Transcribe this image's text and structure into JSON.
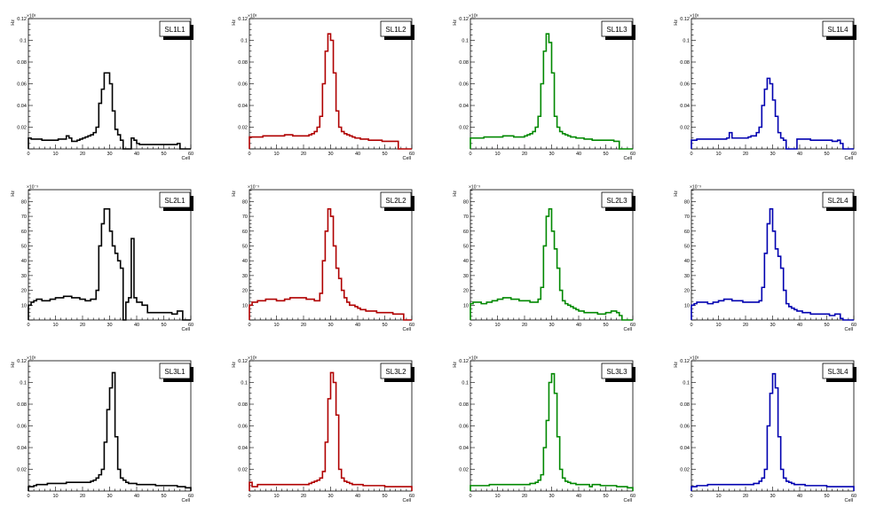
{
  "colors": {
    "black": "#000000",
    "red": "#b00000",
    "green": "#008800",
    "blue": "#0000b0"
  },
  "chart_data": [
    {
      "type": "histogram-step",
      "title": "SL1L1",
      "xlabel": "Cell",
      "ylabel": "Hz",
      "exponent_label": "×10³",
      "xlim": [
        0,
        60
      ],
      "ylim": [
        0,
        0.12
      ],
      "xticks": [
        0,
        10,
        20,
        30,
        40,
        50,
        60
      ],
      "yticks": [
        0.02,
        0.04,
        0.06,
        0.08,
        0.1,
        0.12
      ],
      "ytick_labels": [
        "0.02",
        "0.04",
        "0.06",
        "0.08",
        "0.1",
        "0.12"
      ],
      "color": "black",
      "values": [
        0.01,
        0.009,
        0.009,
        0.009,
        0.009,
        0.008,
        0.008,
        0.008,
        0.008,
        0.008,
        0.008,
        0.009,
        0.009,
        0.009,
        0.012,
        0.01,
        0.007,
        0.007,
        0.008,
        0.009,
        0.01,
        0.011,
        0.012,
        0.013,
        0.015,
        0.02,
        0.042,
        0.055,
        0.07,
        0.07,
        0.06,
        0.035,
        0.018,
        0.013,
        0.008,
        0.0,
        0.0,
        0.0,
        0.01,
        0.008,
        0.005,
        0.004,
        0.004,
        0.004,
        0.004,
        0.004,
        0.004,
        0.004,
        0.004,
        0.004,
        0.004,
        0.004,
        0.004,
        0.004,
        0.004,
        0.005,
        0.0,
        0.0,
        0.0,
        0.0
      ]
    },
    {
      "type": "histogram-step",
      "title": "SL1L2",
      "xlabel": "Cell",
      "ylabel": "Hz",
      "exponent_label": "×10³",
      "xlim": [
        0,
        60
      ],
      "ylim": [
        0,
        0.12
      ],
      "xticks": [
        0,
        10,
        20,
        30,
        40,
        50,
        60
      ],
      "yticks": [
        0.02,
        0.04,
        0.06,
        0.08,
        0.1,
        0.12
      ],
      "ytick_labels": [
        "0.02",
        "0.04",
        "0.06",
        "0.08",
        "0.1",
        "0.12"
      ],
      "color": "red",
      "values": [
        0.011,
        0.011,
        0.011,
        0.011,
        0.011,
        0.012,
        0.012,
        0.012,
        0.012,
        0.012,
        0.012,
        0.012,
        0.012,
        0.013,
        0.013,
        0.013,
        0.012,
        0.012,
        0.012,
        0.012,
        0.012,
        0.012,
        0.013,
        0.014,
        0.016,
        0.02,
        0.03,
        0.06,
        0.09,
        0.106,
        0.1,
        0.07,
        0.035,
        0.02,
        0.016,
        0.014,
        0.013,
        0.012,
        0.011,
        0.01,
        0.01,
        0.009,
        0.009,
        0.009,
        0.008,
        0.008,
        0.008,
        0.008,
        0.008,
        0.007,
        0.007,
        0.007,
        0.007,
        0.007,
        0.007,
        0.0,
        0.0,
        0.0,
        0.0,
        0.0
      ]
    },
    {
      "type": "histogram-step",
      "title": "SL1L3",
      "xlabel": "Cell",
      "ylabel": "Hz",
      "exponent_label": "×10³",
      "xlim": [
        0,
        60
      ],
      "ylim": [
        0,
        0.12
      ],
      "xticks": [
        0,
        10,
        20,
        30,
        40,
        50,
        60
      ],
      "yticks": [
        0.02,
        0.04,
        0.06,
        0.08,
        0.1,
        0.12
      ],
      "ytick_labels": [
        "0.02",
        "0.04",
        "0.06",
        "0.08",
        "0.1",
        "0.12"
      ],
      "color": "green",
      "values": [
        0.01,
        0.01,
        0.01,
        0.01,
        0.01,
        0.011,
        0.011,
        0.011,
        0.011,
        0.011,
        0.011,
        0.011,
        0.012,
        0.012,
        0.012,
        0.012,
        0.011,
        0.011,
        0.011,
        0.011,
        0.012,
        0.013,
        0.014,
        0.016,
        0.02,
        0.03,
        0.06,
        0.09,
        0.106,
        0.098,
        0.07,
        0.03,
        0.02,
        0.016,
        0.014,
        0.013,
        0.012,
        0.011,
        0.011,
        0.01,
        0.01,
        0.01,
        0.009,
        0.009,
        0.009,
        0.008,
        0.008,
        0.008,
        0.008,
        0.008,
        0.008,
        0.008,
        0.008,
        0.007,
        0.007,
        0.0,
        0.0,
        0.0,
        0.0,
        0.0
      ]
    },
    {
      "type": "histogram-step",
      "title": "SL1L4",
      "xlabel": "Cell",
      "ylabel": "Hz",
      "exponent_label": "×10³",
      "xlim": [
        0,
        60
      ],
      "ylim": [
        0,
        0.12
      ],
      "xticks": [
        0,
        10,
        20,
        30,
        40,
        50,
        60
      ],
      "yticks": [
        0.02,
        0.04,
        0.06,
        0.08,
        0.1,
        0.12
      ],
      "ytick_labels": [
        "0.02",
        "0.04",
        "0.06",
        "0.08",
        "0.1",
        "0.12"
      ],
      "color": "blue",
      "values": [
        0.008,
        0.008,
        0.009,
        0.009,
        0.009,
        0.009,
        0.009,
        0.009,
        0.009,
        0.009,
        0.009,
        0.009,
        0.009,
        0.01,
        0.015,
        0.01,
        0.01,
        0.01,
        0.01,
        0.01,
        0.01,
        0.011,
        0.012,
        0.012,
        0.015,
        0.02,
        0.04,
        0.055,
        0.065,
        0.06,
        0.045,
        0.03,
        0.015,
        0.01,
        0.008,
        0.0,
        0.0,
        0.0,
        0.0,
        0.009,
        0.009,
        0.009,
        0.009,
        0.009,
        0.008,
        0.008,
        0.008,
        0.008,
        0.008,
        0.008,
        0.008,
        0.008,
        0.007,
        0.007,
        0.008,
        0.005,
        0.0,
        0.0,
        0.0,
        0.0
      ]
    },
    {
      "type": "histogram-step",
      "title": "SL2L1",
      "xlabel": "Cell",
      "ylabel": "Hz",
      "exponent_label": "×10⁻³",
      "xlim": [
        0,
        60
      ],
      "ylim": [
        0,
        88
      ],
      "xticks": [
        0,
        10,
        20,
        30,
        40,
        50,
        60
      ],
      "yticks": [
        10,
        20,
        30,
        40,
        50,
        60,
        70,
        80
      ],
      "ytick_labels": [
        "10",
        "20",
        "30",
        "40",
        "50",
        "60",
        "70",
        "80"
      ],
      "color": "black",
      "values": [
        10,
        12,
        13,
        14,
        14,
        13,
        13,
        13,
        14,
        14,
        15,
        15,
        15,
        16,
        16,
        16,
        15,
        15,
        15,
        14,
        14,
        13,
        13,
        14,
        14,
        20,
        50,
        65,
        75,
        75,
        60,
        50,
        45,
        40,
        35,
        0,
        12,
        15,
        55,
        15,
        12,
        12,
        10,
        10,
        5,
        5,
        5,
        5,
        5,
        5,
        5,
        5,
        5,
        4,
        4,
        6,
        6,
        0,
        0,
        0
      ]
    },
    {
      "type": "histogram-step",
      "title": "SL2L2",
      "xlabel": "Cell",
      "ylabel": "Hz",
      "exponent_label": "×10⁻³",
      "xlim": [
        0,
        60
      ],
      "ylim": [
        0,
        88
      ],
      "xticks": [
        0,
        10,
        20,
        30,
        40,
        50,
        60
      ],
      "yticks": [
        10,
        20,
        30,
        40,
        50,
        60,
        70,
        80
      ],
      "ytick_labels": [
        "10",
        "20",
        "30",
        "40",
        "50",
        "60",
        "70",
        "80"
      ],
      "color": "red",
      "values": [
        10,
        12,
        12,
        13,
        13,
        13,
        14,
        14,
        14,
        14,
        13,
        13,
        13,
        14,
        14,
        15,
        15,
        15,
        15,
        15,
        15,
        14,
        14,
        14,
        13,
        13,
        18,
        40,
        60,
        75,
        70,
        50,
        35,
        28,
        20,
        15,
        12,
        10,
        10,
        9,
        8,
        7,
        7,
        6,
        6,
        6,
        6,
        5,
        5,
        5,
        5,
        5,
        5,
        4,
        4,
        4,
        4,
        0,
        0,
        0
      ]
    },
    {
      "type": "histogram-step",
      "title": "SL2L3",
      "xlabel": "Cell",
      "ylabel": "Hz",
      "exponent_label": "×10⁻³",
      "xlim": [
        0,
        60
      ],
      "ylim": [
        0,
        88
      ],
      "xticks": [
        0,
        10,
        20,
        30,
        40,
        50,
        60
      ],
      "yticks": [
        10,
        20,
        30,
        40,
        50,
        60,
        70,
        80
      ],
      "ytick_labels": [
        "10",
        "20",
        "30",
        "40",
        "50",
        "60",
        "70",
        "80"
      ],
      "color": "green",
      "values": [
        11,
        12,
        12,
        12,
        11,
        11,
        12,
        12,
        13,
        13,
        14,
        14,
        15,
        15,
        15,
        14,
        14,
        14,
        13,
        13,
        13,
        13,
        12,
        12,
        12,
        14,
        22,
        50,
        70,
        75,
        60,
        48,
        35,
        20,
        13,
        11,
        10,
        9,
        8,
        7,
        6,
        6,
        5,
        5,
        5,
        5,
        5,
        4,
        4,
        4,
        5,
        5,
        6,
        6,
        5,
        3,
        0,
        0,
        0,
        0
      ]
    },
    {
      "type": "histogram-step",
      "title": "SL2L4",
      "xlabel": "Cell",
      "ylabel": "Hz",
      "exponent_label": "×10⁻³",
      "xlim": [
        0,
        60
      ],
      "ylim": [
        0,
        88
      ],
      "xticks": [
        0,
        10,
        20,
        30,
        40,
        50,
        60
      ],
      "yticks": [
        10,
        20,
        30,
        40,
        50,
        60,
        70,
        80
      ],
      "ytick_labels": [
        "10",
        "20",
        "30",
        "40",
        "50",
        "60",
        "70",
        "80"
      ],
      "color": "blue",
      "values": [
        10,
        11,
        12,
        12,
        12,
        12,
        11,
        11,
        12,
        12,
        13,
        13,
        14,
        14,
        14,
        13,
        13,
        13,
        13,
        12,
        12,
        12,
        12,
        12,
        12,
        13,
        22,
        45,
        65,
        75,
        60,
        48,
        43,
        35,
        20,
        11,
        9,
        8,
        7,
        6,
        6,
        5,
        5,
        5,
        4,
        4,
        4,
        4,
        4,
        4,
        4,
        3,
        3,
        4,
        4,
        1,
        0,
        0,
        0,
        0
      ]
    },
    {
      "type": "histogram-step",
      "title": "SL3L1",
      "xlabel": "Cell",
      "ylabel": "Hz",
      "exponent_label": "×10³",
      "xlim": [
        0,
        60
      ],
      "ylim": [
        0,
        0.12
      ],
      "xticks": [
        0,
        10,
        20,
        30,
        40,
        50,
        60
      ],
      "yticks": [
        0.02,
        0.04,
        0.06,
        0.08,
        0.1,
        0.12
      ],
      "ytick_labels": [
        "0.02",
        "0.04",
        "0.06",
        "0.08",
        "0.1",
        "0.12"
      ],
      "color": "black",
      "values": [
        0.004,
        0.004,
        0.005,
        0.006,
        0.006,
        0.006,
        0.006,
        0.007,
        0.007,
        0.007,
        0.007,
        0.007,
        0.007,
        0.007,
        0.008,
        0.008,
        0.008,
        0.008,
        0.008,
        0.008,
        0.008,
        0.008,
        0.008,
        0.009,
        0.01,
        0.012,
        0.015,
        0.02,
        0.045,
        0.075,
        0.095,
        0.109,
        0.05,
        0.02,
        0.012,
        0.01,
        0.008,
        0.007,
        0.007,
        0.007,
        0.006,
        0.006,
        0.006,
        0.006,
        0.006,
        0.006,
        0.006,
        0.005,
        0.005,
        0.005,
        0.005,
        0.005,
        0.005,
        0.005,
        0.005,
        0.004,
        0.004,
        0.004,
        0.003,
        0.003
      ]
    },
    {
      "type": "histogram-step",
      "title": "SL3L2",
      "xlabel": "Cell",
      "ylabel": "Hz",
      "exponent_label": "×10³",
      "xlim": [
        0,
        60
      ],
      "ylim": [
        0,
        0.12
      ],
      "xticks": [
        0,
        10,
        20,
        30,
        40,
        50,
        60
      ],
      "yticks": [
        0.02,
        0.04,
        0.06,
        0.08,
        0.1,
        0.12
      ],
      "ytick_labels": [
        "0.02",
        "0.04",
        "0.06",
        "0.08",
        "0.1",
        "0.12"
      ],
      "color": "red",
      "values": [
        0.008,
        0.004,
        0.004,
        0.006,
        0.006,
        0.006,
        0.006,
        0.006,
        0.006,
        0.006,
        0.006,
        0.006,
        0.006,
        0.006,
        0.006,
        0.006,
        0.006,
        0.006,
        0.006,
        0.006,
        0.006,
        0.006,
        0.007,
        0.008,
        0.009,
        0.01,
        0.012,
        0.018,
        0.045,
        0.085,
        0.109,
        0.1,
        0.07,
        0.02,
        0.012,
        0.009,
        0.008,
        0.007,
        0.006,
        0.006,
        0.006,
        0.006,
        0.005,
        0.005,
        0.005,
        0.005,
        0.005,
        0.005,
        0.005,
        0.005,
        0.004,
        0.004,
        0.004,
        0.004,
        0.004,
        0.004,
        0.004,
        0.004,
        0.004,
        0.004
      ]
    },
    {
      "type": "histogram-step",
      "title": "SL3L3",
      "xlabel": "Cell",
      "ylabel": "Hz",
      "exponent_label": "×10³",
      "xlim": [
        0,
        60
      ],
      "ylim": [
        0,
        0.12
      ],
      "xticks": [
        0,
        10,
        20,
        30,
        40,
        50,
        60
      ],
      "yticks": [
        0.02,
        0.04,
        0.06,
        0.08,
        0.1,
        0.12
      ],
      "ytick_labels": [
        "0.02",
        "0.04",
        "0.06",
        "0.08",
        "0.1",
        "0.12"
      ],
      "color": "green",
      "values": [
        0.005,
        0.005,
        0.005,
        0.005,
        0.005,
        0.005,
        0.005,
        0.006,
        0.006,
        0.006,
        0.006,
        0.006,
        0.006,
        0.006,
        0.006,
        0.006,
        0.006,
        0.006,
        0.006,
        0.006,
        0.006,
        0.006,
        0.007,
        0.007,
        0.008,
        0.01,
        0.015,
        0.04,
        0.065,
        0.1,
        0.108,
        0.09,
        0.05,
        0.02,
        0.012,
        0.009,
        0.008,
        0.007,
        0.007,
        0.006,
        0.006,
        0.006,
        0.006,
        0.006,
        0.004,
        0.006,
        0.006,
        0.006,
        0.005,
        0.005,
        0.005,
        0.005,
        0.005,
        0.005,
        0.004,
        0.004,
        0.004,
        0.004,
        0.003,
        0.003
      ]
    },
    {
      "type": "histogram-step",
      "title": "SL3L4",
      "xlabel": "Cell",
      "ylabel": "Hz",
      "exponent_label": "×10³",
      "xlim": [
        0,
        60
      ],
      "ylim": [
        0,
        0.12
      ],
      "xticks": [
        0,
        10,
        20,
        30,
        40,
        50,
        60
      ],
      "yticks": [
        0.02,
        0.04,
        0.06,
        0.08,
        0.1,
        0.12
      ],
      "ytick_labels": [
        "0.02",
        "0.04",
        "0.06",
        "0.08",
        "0.1",
        "0.12"
      ],
      "color": "blue",
      "values": [
        0.004,
        0.004,
        0.005,
        0.005,
        0.005,
        0.005,
        0.006,
        0.006,
        0.006,
        0.006,
        0.006,
        0.006,
        0.006,
        0.006,
        0.006,
        0.006,
        0.006,
        0.006,
        0.006,
        0.006,
        0.006,
        0.006,
        0.006,
        0.007,
        0.007,
        0.009,
        0.012,
        0.02,
        0.06,
        0.09,
        0.108,
        0.095,
        0.05,
        0.02,
        0.012,
        0.009,
        0.008,
        0.007,
        0.006,
        0.006,
        0.006,
        0.006,
        0.005,
        0.005,
        0.005,
        0.005,
        0.005,
        0.005,
        0.005,
        0.005,
        0.004,
        0.004,
        0.004,
        0.004,
        0.004,
        0.004,
        0.004,
        0.004,
        0.004,
        0.004
      ]
    }
  ]
}
